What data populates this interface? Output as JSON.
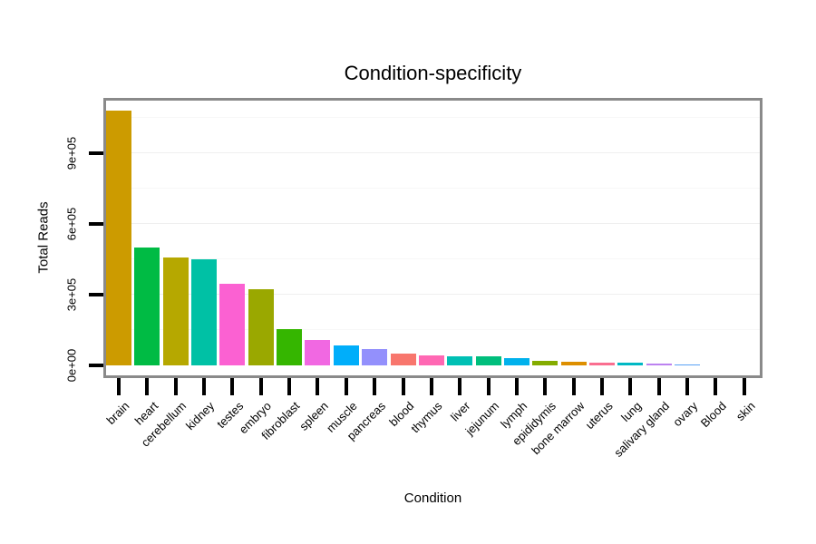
{
  "chart_data": {
    "type": "bar",
    "title": "Condition-specificity",
    "xlabel": "Condition",
    "ylabel": "Total Reads",
    "legend": "none",
    "grid": "faint horizontal major and minor gridlines",
    "categories": [
      "brain",
      "heart",
      "cerebellum",
      "kidney",
      "testes",
      "embryo",
      "fibroblast",
      "spleen",
      "muscle",
      "pancreas",
      "blood",
      "thymus",
      "liver",
      "jejunum",
      "lymph",
      "epididymis",
      "bone marrow",
      "uterus",
      "lung",
      "salivary gland",
      "ovary",
      "Blood",
      "skin"
    ],
    "values": [
      1080000,
      501000,
      456000,
      450000,
      347000,
      323000,
      155000,
      107000,
      83000,
      70000,
      51000,
      42000,
      39000,
      38000,
      32000,
      19000,
      16500,
      12000,
      11500,
      7500,
      3000,
      400,
      150
    ],
    "bar_colors": [
      "#CC9B00",
      "#00BB44",
      "#B6A800",
      "#00C1A5",
      "#FB61D2",
      "#9AA800",
      "#35B600",
      "#F168E2",
      "#00AEFA",
      "#9390FC",
      "#F8766D",
      "#FF68B3",
      "#00C0B4",
      "#00BE7C",
      "#00B1EC",
      "#84AC00",
      "#DD8F00",
      "#FA6E90",
      "#00B8C4",
      "#BC82F0",
      "#59A2F5",
      "#FF6A5A",
      "#DE8C00"
    ],
    "y_ticks": {
      "labels": [
        "0e+00",
        "3e+05",
        "6e+05",
        "9e+05"
      ],
      "values": [
        0,
        300000,
        600000,
        900000
      ]
    },
    "ylim": [
      0,
      1122000
    ],
    "style_colors": {
      "panel_border": "#8A8A8A",
      "tick_color": "#000000",
      "grid_major": "#EFEFEF",
      "grid_minor": "#F7F7F7",
      "background": "#FFFFFF",
      "text": "#000000"
    }
  }
}
